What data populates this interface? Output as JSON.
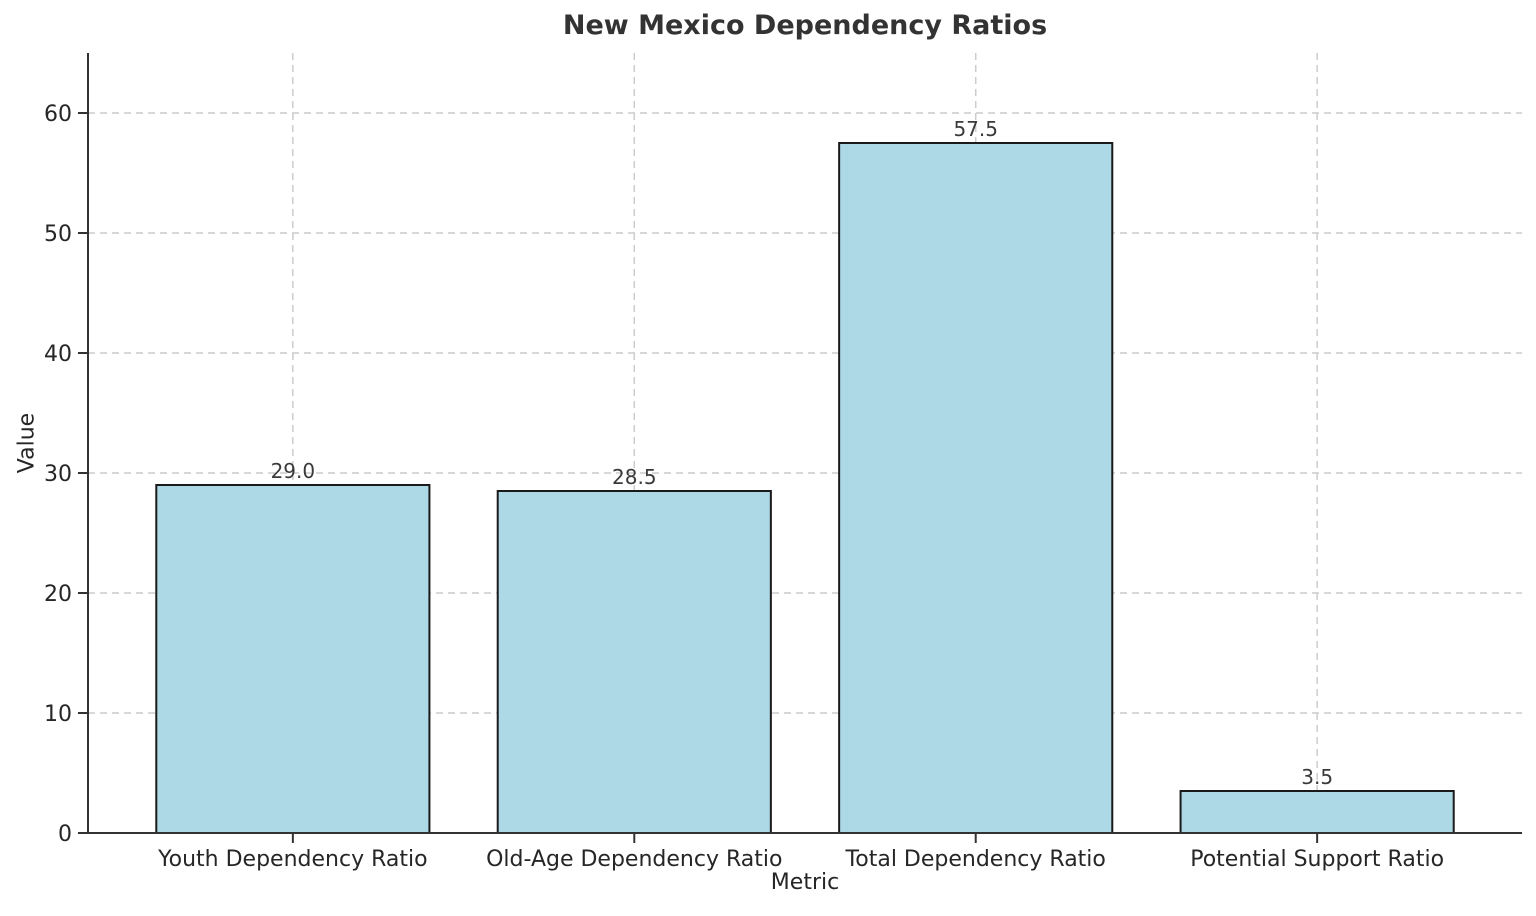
{
  "chart_data": {
    "type": "bar",
    "title": "New Mexico Dependency Ratios",
    "xlabel": "Metric",
    "ylabel": "Value",
    "categories": [
      "Youth Dependency Ratio",
      "Old-Age Dependency Ratio",
      "Total Dependency Ratio",
      "Potential Support Ratio"
    ],
    "values": [
      29.0,
      28.5,
      57.5,
      3.5
    ],
    "value_labels": [
      "29.0",
      "28.5",
      "57.5",
      "3.5"
    ],
    "yticks": [
      0,
      10,
      20,
      30,
      40,
      50,
      60
    ],
    "ylim": [
      0,
      65
    ],
    "grid": "dashed horizontal lines at y-ticks and dashed vertical lines at bar centers",
    "legend": "none",
    "colors": {
      "bar_fill": "#ADD8E6",
      "bar_edge": "#1a1a1a",
      "grid": "#cccccc",
      "axis": "#333333",
      "tick_text": "#262626",
      "title_text": "#333333",
      "value_label_text": "#3a3a3a",
      "background": "#ffffff"
    }
  }
}
